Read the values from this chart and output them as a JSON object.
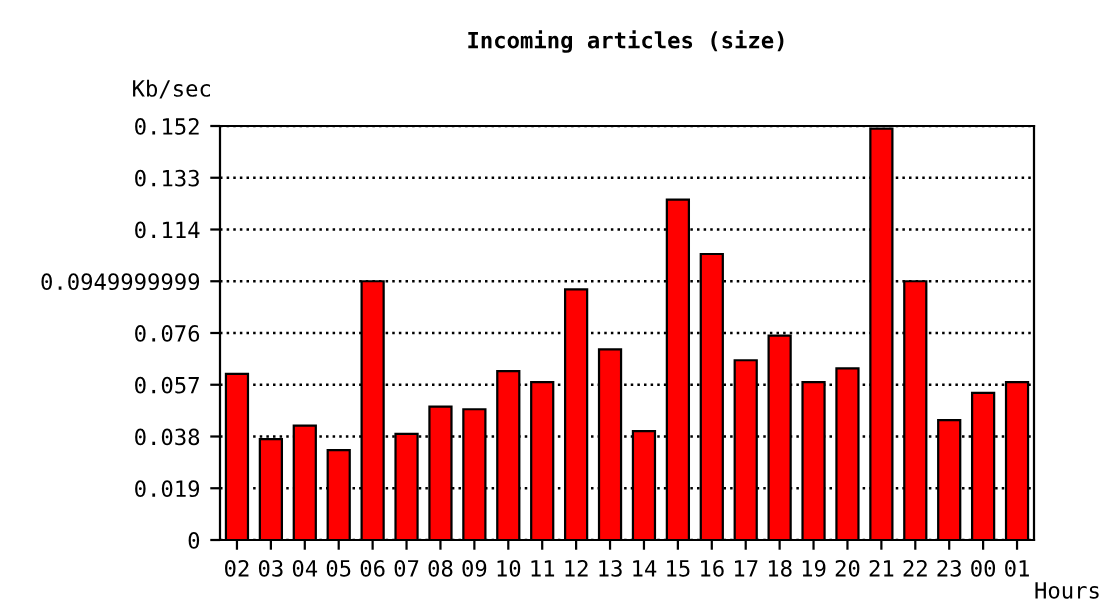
{
  "chart_data": {
    "type": "bar",
    "title": "Incoming articles (size)",
    "ylabel": "Kb/sec",
    "xlabel": "Hours",
    "categories": [
      "02",
      "03",
      "04",
      "05",
      "06",
      "07",
      "08",
      "09",
      "10",
      "11",
      "12",
      "13",
      "14",
      "15",
      "16",
      "17",
      "18",
      "19",
      "20",
      "21",
      "22",
      "23",
      "00",
      "01"
    ],
    "values": [
      0.061,
      0.037,
      0.042,
      0.033,
      0.095,
      0.039,
      0.049,
      0.048,
      0.062,
      0.058,
      0.092,
      0.07,
      0.04,
      0.125,
      0.105,
      0.066,
      0.075,
      0.058,
      0.063,
      0.151,
      0.095,
      0.044,
      0.054,
      0.058
    ],
    "color": "#ff0000",
    "ylim": [
      0,
      0.152
    ],
    "yticks": [
      0,
      0.019,
      0.038,
      0.057,
      0.076,
      0.0949999999,
      0.114,
      0.133,
      0.152
    ],
    "grid": "y",
    "line_style": "dotted"
  }
}
